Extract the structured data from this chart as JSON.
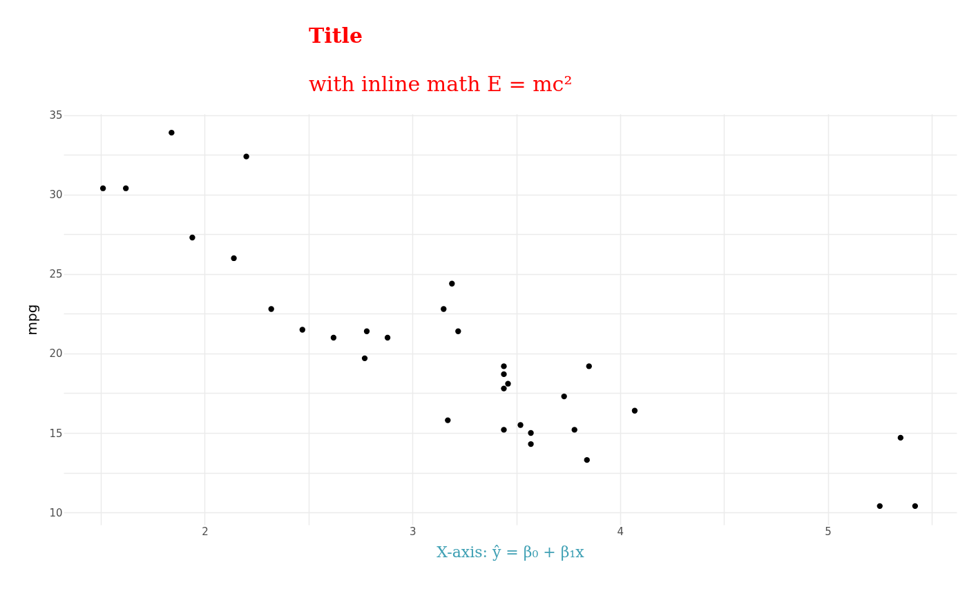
{
  "chart_data": {
    "type": "scatter",
    "title": "Title",
    "subtitle": "with inline math E = mc²",
    "xlabel": "X-axis: ŷ = β₀ + β₁x",
    "ylabel": "mpg",
    "x": [
      2.62,
      2.88,
      2.32,
      3.22,
      3.44,
      3.46,
      3.57,
      3.19,
      3.15,
      3.44,
      3.44,
      4.07,
      3.73,
      3.78,
      5.25,
      5.42,
      5.35,
      2.2,
      1.62,
      1.84,
      2.47,
      3.52,
      3.44,
      3.84,
      3.85,
      1.94,
      2.14,
      1.51,
      3.17,
      2.77,
      3.57,
      2.78
    ],
    "values": [
      21.0,
      21.0,
      22.8,
      21.4,
      18.7,
      18.1,
      14.3,
      24.4,
      22.8,
      19.2,
      17.8,
      16.4,
      17.3,
      15.2,
      10.4,
      10.4,
      14.7,
      32.4,
      30.4,
      33.9,
      21.5,
      15.5,
      15.2,
      13.3,
      19.2,
      27.3,
      26.0,
      30.4,
      15.8,
      19.7,
      15.0,
      21.4
    ],
    "color": "#000000",
    "marker": "circle",
    "grid": true,
    "xlim": [
      1.32,
      5.62
    ],
    "ylim": [
      9.22,
      35.08
    ],
    "xticks": [
      {
        "value": 1.5,
        "label": null
      },
      2,
      {
        "value": 2.5,
        "label": null
      },
      3,
      {
        "value": 3.5,
        "label": null
      },
      4,
      {
        "value": 4.5,
        "label": null
      },
      5,
      {
        "value": 5.5,
        "label": null
      }
    ],
    "yticks": [
      10,
      {
        "value": 12.5,
        "label": null
      },
      15,
      {
        "value": 17.5,
        "label": null
      },
      20,
      {
        "value": 22.5,
        "label": null
      },
      25,
      {
        "value": 27.5,
        "label": null
      },
      30,
      {
        "value": 32.5,
        "label": null
      },
      35
    ]
  }
}
